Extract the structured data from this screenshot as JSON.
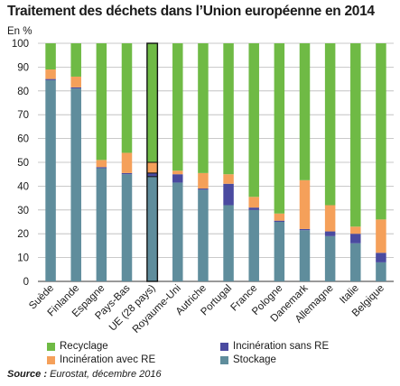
{
  "chart_data": {
    "type": "bar",
    "stacked": true,
    "title": "Traitement des déchets dans l’Union européenne en 2014",
    "ylabel": "En %",
    "ylim": [
      0,
      100
    ],
    "yticks": [
      0,
      10,
      20,
      30,
      40,
      50,
      60,
      70,
      80,
      90,
      100
    ],
    "grid": true,
    "categories": [
      "Suède",
      "Finlande",
      "Espagne",
      "Pays-Bas",
      "UE (28 pays)",
      "Royaume-Uni",
      "Autriche",
      "Portugal",
      "France",
      "Pologne",
      "Danemark",
      "Allemagne",
      "Italie",
      "Belgique"
    ],
    "highlighted_category": "UE (28 pays)",
    "series": [
      {
        "name": "Stockage",
        "color": "#5f8d9c",
        "values": [
          84.5,
          81,
          47.5,
          45,
          44,
          41.5,
          38.5,
          32,
          30,
          25,
          21.5,
          19,
          16,
          8
        ]
      },
      {
        "name": "Incinération sans RE",
        "color": "#4a4aa0",
        "values": [
          0.5,
          0.5,
          0.5,
          0.5,
          1.5,
          3.5,
          0.5,
          9,
          1,
          0.5,
          0.5,
          2,
          4,
          4
        ]
      },
      {
        "name": "Incinération avec RE",
        "color": "#f5a05a",
        "values": [
          4,
          4.5,
          3,
          8.5,
          4.5,
          1.5,
          6.5,
          4,
          4.5,
          3,
          20.5,
          11,
          3,
          14
        ]
      },
      {
        "name": "Recyclage",
        "color": "#6fba45",
        "values": [
          11,
          14,
          49,
          46,
          50,
          53.5,
          54.5,
          55,
          64.5,
          71.5,
          57.5,
          68,
          77,
          74
        ]
      }
    ]
  },
  "legend": [
    {
      "label": "Recyclage",
      "color": "#6fba45"
    },
    {
      "label": "Incinération sans RE",
      "color": "#4a4aa0"
    },
    {
      "label": "Incinération avec RE",
      "color": "#f5a05a"
    },
    {
      "label": "Stockage",
      "color": "#5f8d9c"
    }
  ],
  "source": {
    "label": "Source :",
    "text": " Eurostat, décembre 2016"
  }
}
